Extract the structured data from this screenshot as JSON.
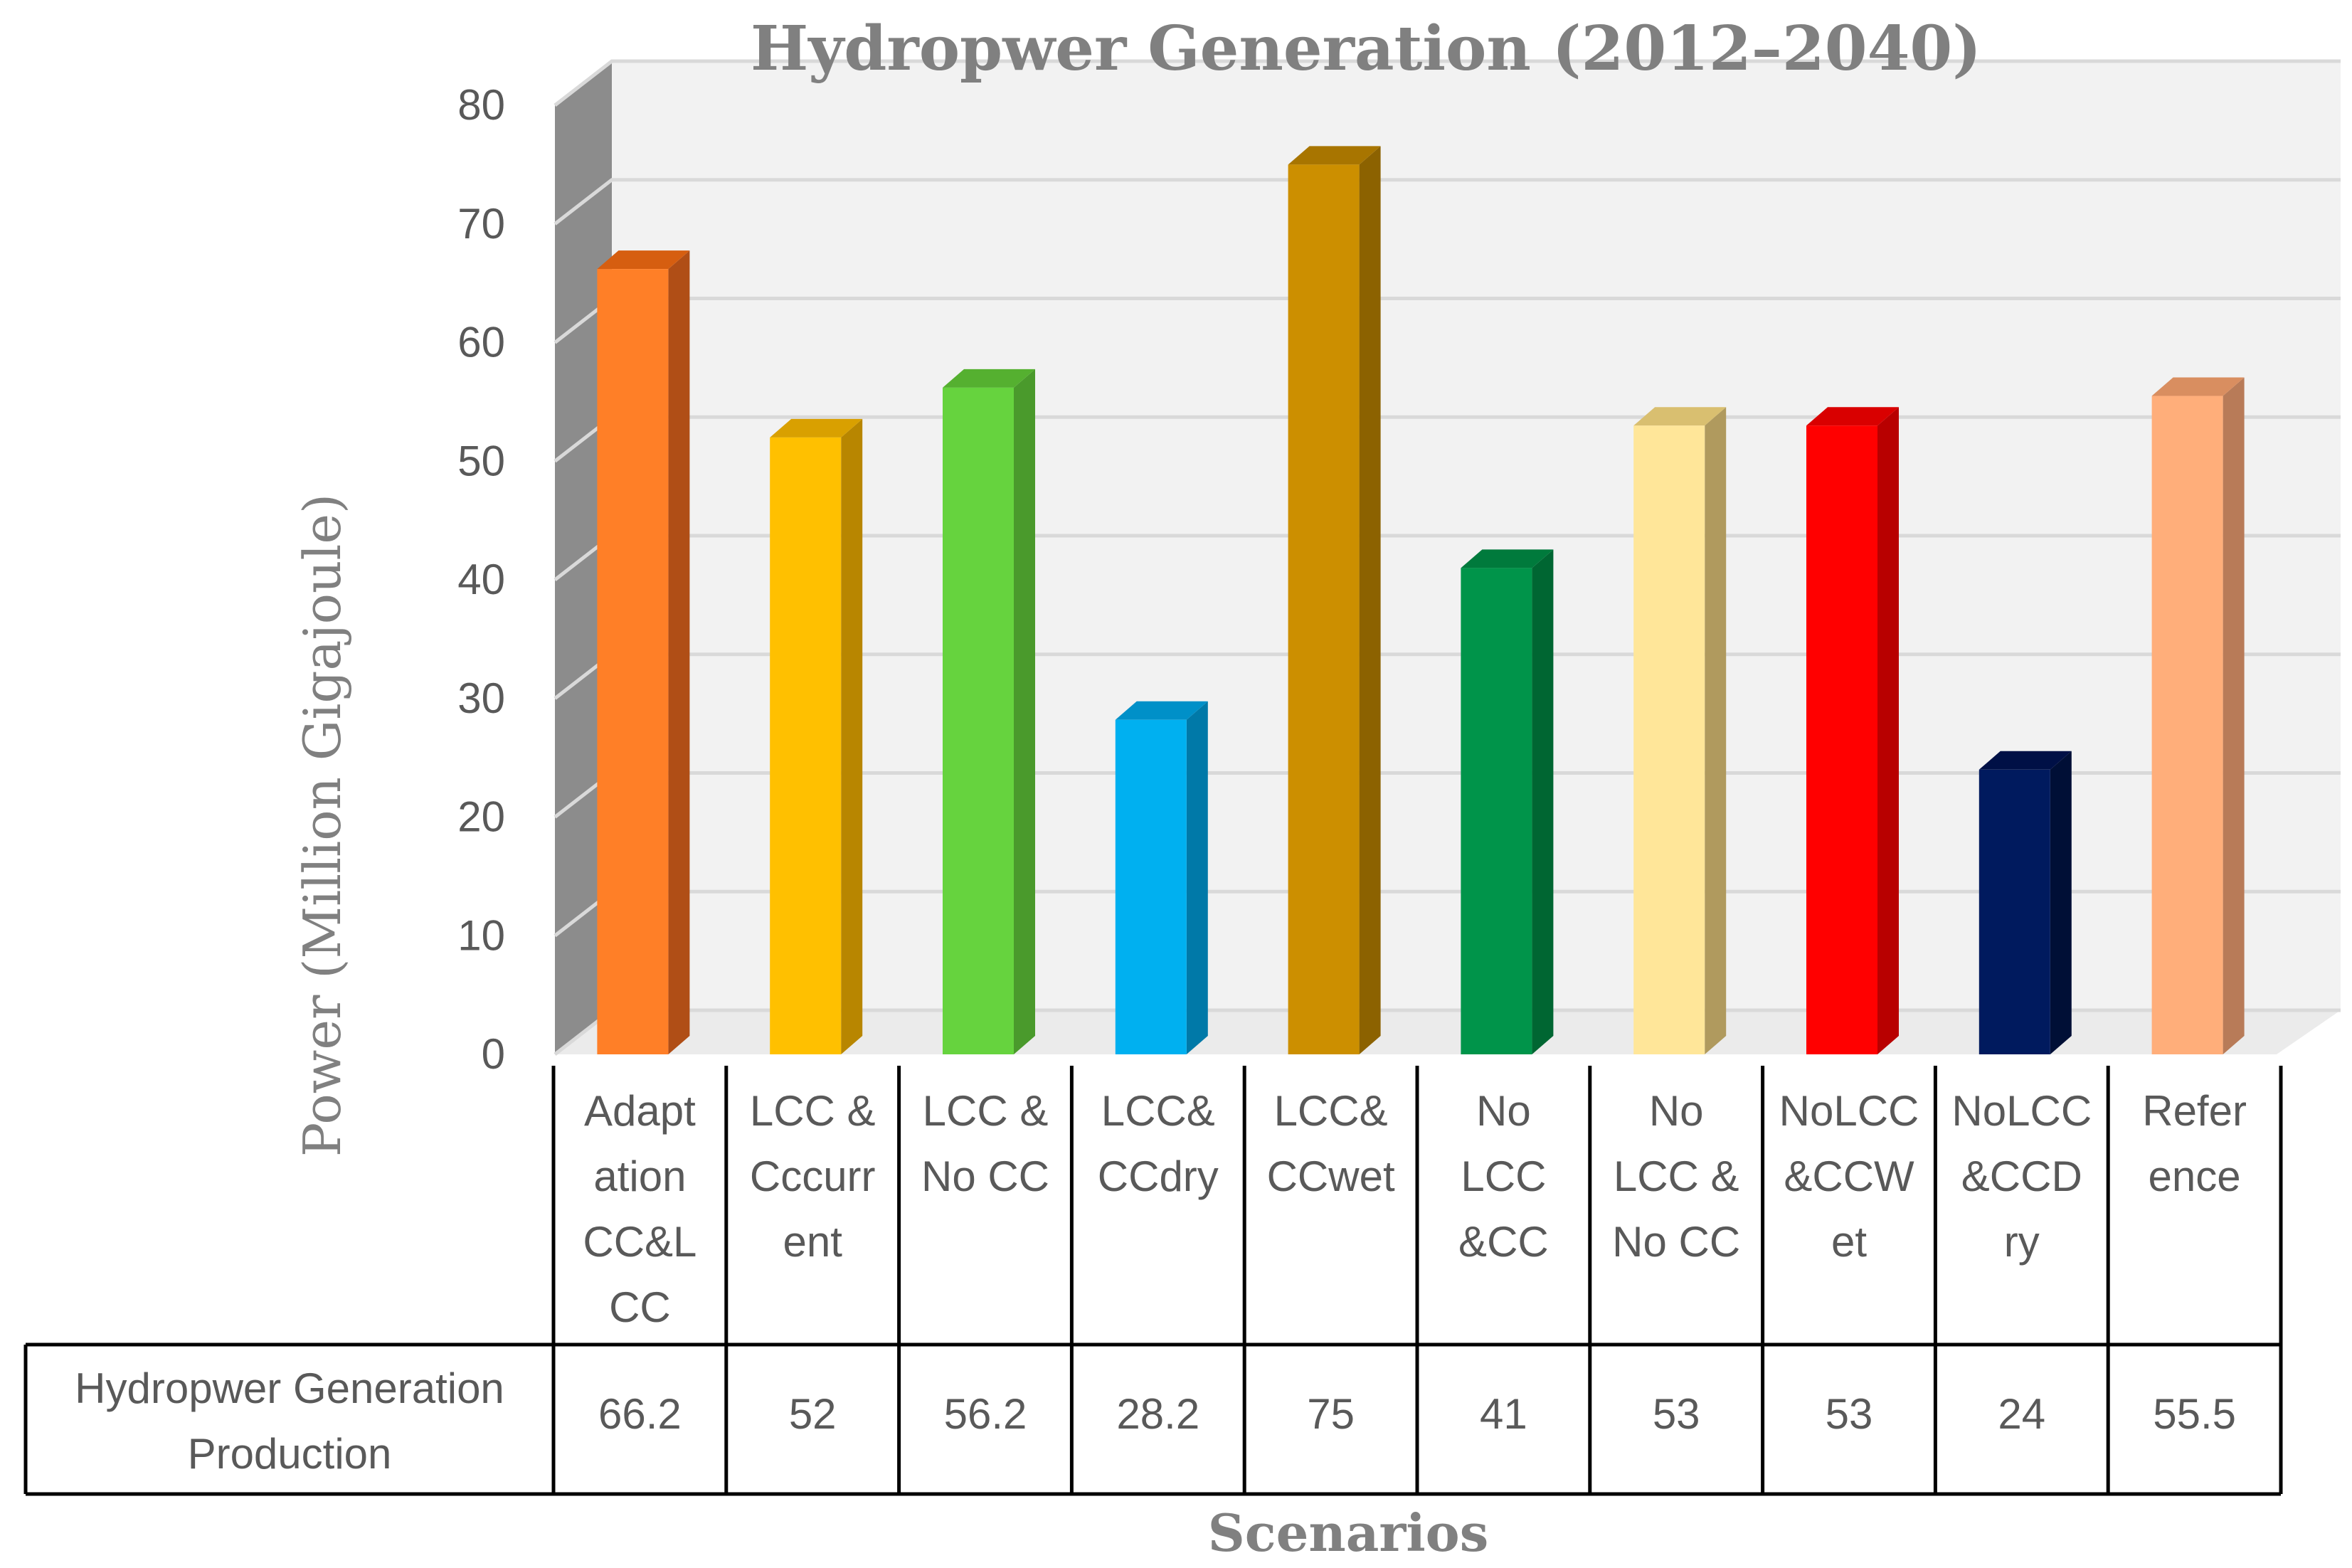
{
  "chart_data": {
    "type": "bar",
    "title": "Hydropwer Generation (2012–2040)",
    "ylabel": "Power (Million Gigajoule)",
    "xlabel": "Scenarios",
    "ylim": [
      0,
      80
    ],
    "yticks": [
      0,
      10,
      20,
      30,
      40,
      50,
      60,
      70,
      80
    ],
    "grid": true,
    "categories": [
      [
        "Adapt",
        "ation",
        "CC&L",
        "CC"
      ],
      [
        "LCC &",
        "Cccurr",
        "ent"
      ],
      [
        "LCC &",
        "No CC"
      ],
      [
        "LCC&",
        "CCdry"
      ],
      [
        "LCC&",
        "CCwet"
      ],
      [
        "No",
        "LCC",
        "&CC"
      ],
      [
        "No",
        "LCC &",
        "No CC"
      ],
      [
        "NoLCC",
        "&CCW",
        "et"
      ],
      [
        "NoLCC",
        "&CCD",
        "ry"
      ],
      [
        "Refer",
        "ence"
      ]
    ],
    "series": [
      {
        "name": "Hydropwer Generation Production",
        "name_lines": [
          "Hydropwer Generation",
          "Production"
        ],
        "values": [
          66.2,
          52,
          56.2,
          28.2,
          75,
          41,
          53,
          53,
          24,
          55.5
        ],
        "labels": [
          "66.2",
          "52",
          "56.2",
          "28.2",
          "75",
          "41",
          "53",
          "53",
          "24",
          "55.5"
        ]
      }
    ],
    "colors": [
      "#FF7F27",
      "#FFC000",
      "#66D33E",
      "#00B0F0",
      "#CC8F00",
      "#00944A",
      "#FFE699",
      "#FF0000",
      "#001A5E",
      "#FFAE7A"
    ],
    "side_colors": [
      "#B04E16",
      "#B88600",
      "#4A9A2C",
      "#0079A8",
      "#8C6200",
      "#006632",
      "#B09A5E",
      "#B80000",
      "#000F36",
      "#B87B58"
    ],
    "top_colors": [
      "#D65E10",
      "#D9A000",
      "#55B030",
      "#0090C8",
      "#A87500",
      "#007A3C",
      "#D9BF70",
      "#D90000",
      "#001046",
      "#D98E60"
    ]
  }
}
